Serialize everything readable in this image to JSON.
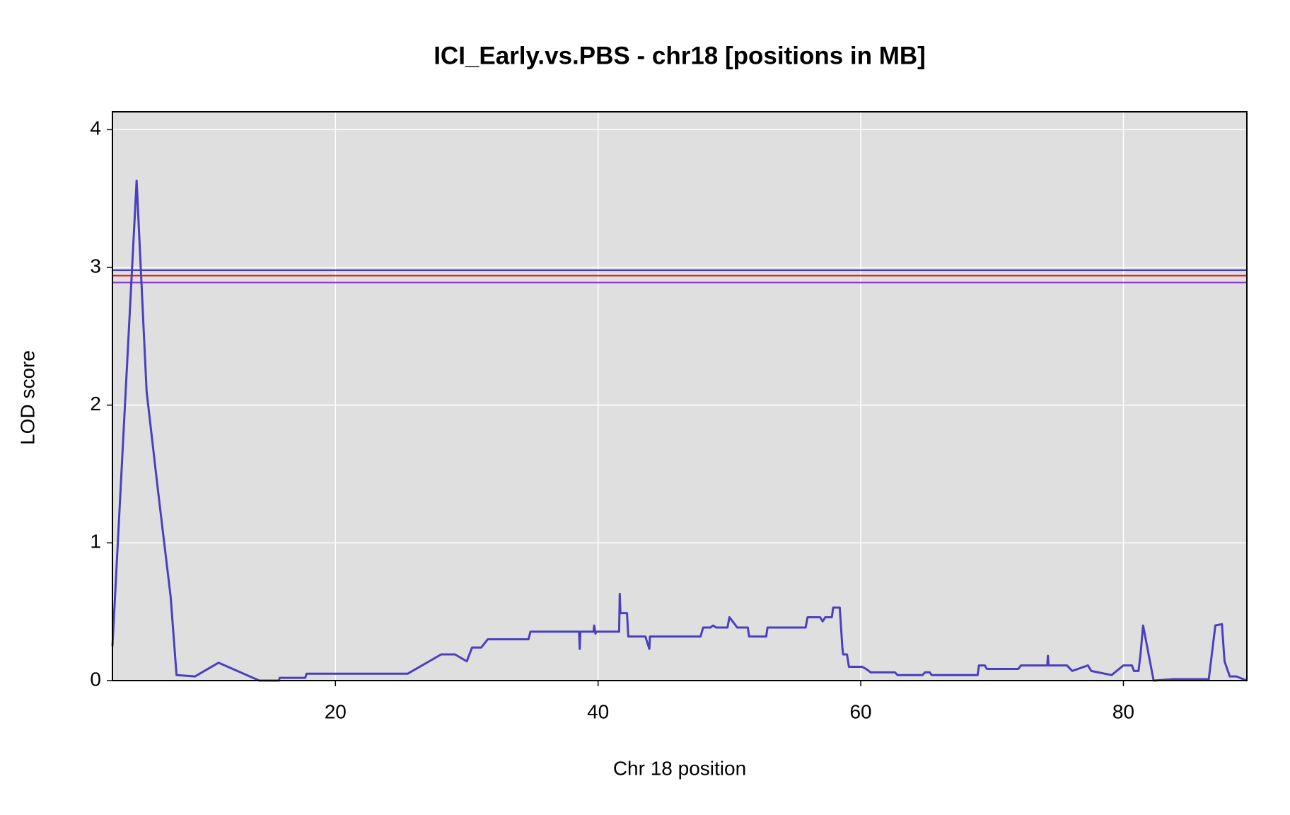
{
  "chart_data": {
    "type": "line",
    "title": "ICI_Early.vs.PBS - chr18 [positions in MB]",
    "x_label": "Chr 18 position",
    "y_label": "LOD score",
    "xlim": [
      3.02,
      89.4
    ],
    "ylim": [
      0,
      4.13
    ],
    "xticks": [
      20,
      40,
      60,
      80
    ],
    "yticks": [
      0,
      1,
      2,
      3,
      4
    ],
    "grid": true,
    "hlines": [
      {
        "value": 2.98,
        "color": "#2a2ad0"
      },
      {
        "value": 2.94,
        "color": "#e02020"
      },
      {
        "value": 2.89,
        "color": "#8a2be2"
      }
    ],
    "series": [
      {
        "color": "#4b3fbf",
        "x": [
          3.02,
          4.86,
          5.62,
          6.5,
          7.45,
          7.9,
          9.3,
          11.1,
          14.2,
          15.7,
          15.75,
          17.7,
          17.8,
          25.5,
          28.05,
          29.1,
          30.0,
          30.4,
          31.1,
          31.6,
          34.7,
          34.85,
          38.55,
          38.6,
          38.65,
          39.65,
          39.7,
          39.8,
          39.85,
          41.6,
          41.65,
          41.7,
          42.2,
          42.3,
          43.6,
          43.9,
          43.95,
          47.8,
          48.0,
          48.55,
          48.75,
          49.0,
          49.85,
          50.0,
          50.6,
          51.4,
          51.5,
          52.8,
          52.9,
          55.8,
          55.95,
          56.9,
          57.1,
          57.3,
          57.8,
          57.9,
          58.4,
          58.6,
          58.66,
          58.95,
          59.1,
          60.1,
          60.4,
          60.75,
          62.6,
          62.8,
          64.7,
          64.9,
          65.25,
          65.4,
          68.9,
          69.0,
          69.45,
          69.6,
          72.0,
          72.2,
          74.2,
          74.25,
          74.3,
          75.7,
          76.1,
          77.3,
          77.55,
          79.1,
          80.0,
          80.65,
          80.8,
          81.15,
          81.3,
          81.5,
          82.3,
          83.8,
          86.5,
          87.0,
          87.5,
          87.7,
          88.1,
          88.6,
          89.4
        ],
        "values": [
          0.25,
          3.63,
          2.1,
          1.37,
          0.61,
          0.04,
          0.03,
          0.13,
          0.0,
          0.0,
          0.02,
          0.02,
          0.05,
          0.05,
          0.19,
          0.19,
          0.14,
          0.24,
          0.24,
          0.3,
          0.3,
          0.355,
          0.355,
          0.23,
          0.355,
          0.355,
          0.4,
          0.34,
          0.355,
          0.355,
          0.63,
          0.49,
          0.49,
          0.32,
          0.32,
          0.23,
          0.32,
          0.32,
          0.385,
          0.385,
          0.4,
          0.385,
          0.385,
          0.46,
          0.385,
          0.385,
          0.32,
          0.32,
          0.385,
          0.385,
          0.46,
          0.46,
          0.43,
          0.46,
          0.46,
          0.53,
          0.53,
          0.24,
          0.19,
          0.19,
          0.1,
          0.1,
          0.085,
          0.06,
          0.06,
          0.04,
          0.04,
          0.06,
          0.06,
          0.04,
          0.04,
          0.11,
          0.11,
          0.085,
          0.085,
          0.11,
          0.11,
          0.18,
          0.11,
          0.11,
          0.07,
          0.11,
          0.07,
          0.04,
          0.11,
          0.11,
          0.07,
          0.07,
          0.19,
          0.4,
          0.0,
          0.01,
          0.01,
          0.4,
          0.41,
          0.14,
          0.03,
          0.03,
          0.0
        ]
      }
    ]
  }
}
